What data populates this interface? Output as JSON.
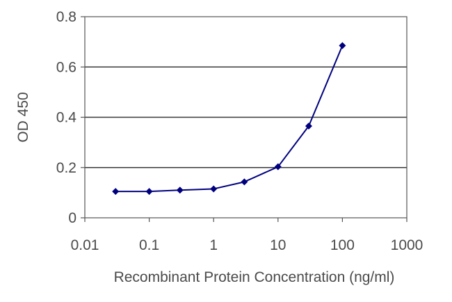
{
  "chart_data": {
    "type": "line",
    "title": "",
    "xlabel": "Recombinant Protein Concentration (ng/ml)",
    "ylabel": "OD 450",
    "x_scale": "log",
    "xlim": [
      0.01,
      1000
    ],
    "ylim": [
      0,
      0.8
    ],
    "x_ticks": [
      "0.01",
      "0.1",
      "1",
      "10",
      "100",
      "1000"
    ],
    "y_ticks": [
      "0",
      "0.2",
      "0.4",
      "0.6",
      "0.8"
    ],
    "grid": "horizontal",
    "series": [
      {
        "x": [
          0.03,
          0.1,
          0.3,
          1,
          3,
          10,
          30,
          100
        ],
        "values": [
          0.105,
          0.105,
          0.11,
          0.115,
          0.143,
          0.203,
          0.365,
          0.685
        ],
        "color": "#00007f",
        "marker": "diamond"
      }
    ]
  }
}
